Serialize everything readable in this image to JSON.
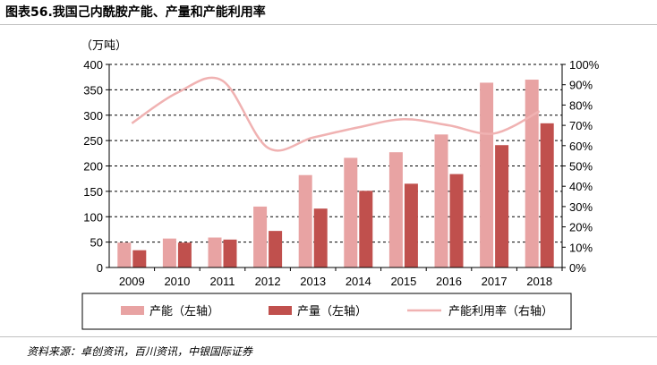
{
  "header": {
    "title": "图表56.我国己内酰胺产能、产量和产能利用率",
    "unit": "（万吨）"
  },
  "footer": {
    "source": "资料来源：卓创资讯，百川资讯，中银国际证券"
  },
  "colors": {
    "capacity": "#e8a3a3",
    "output": "#c0504d",
    "utilization": "#f0b2b2"
  },
  "chart_data": {
    "type": "bar",
    "categories": [
      "2009",
      "2010",
      "2011",
      "2012",
      "2013",
      "2014",
      "2015",
      "2016",
      "2017",
      "2018"
    ],
    "series": [
      {
        "name": "产能（左轴）",
        "axis": "left",
        "kind": "bar",
        "values": [
          49,
          57,
          59,
          120,
          182,
          216,
          227,
          262,
          364,
          370
        ]
      },
      {
        "name": "产量（左轴）",
        "axis": "left",
        "kind": "bar",
        "values": [
          34,
          49,
          55,
          72,
          116,
          151,
          165,
          184,
          241,
          284
        ]
      },
      {
        "name": "产能利用率（右轴）",
        "axis": "right",
        "kind": "line",
        "values": [
          71,
          86,
          92,
          59,
          64,
          69,
          73,
          70,
          66,
          77
        ]
      }
    ],
    "left_axis": {
      "ylim": [
        0,
        400
      ],
      "ticks": [
        "0",
        "50",
        "100",
        "150",
        "200",
        "250",
        "300",
        "350",
        "400"
      ]
    },
    "right_axis": {
      "ylim": [
        0,
        100
      ],
      "ticks": [
        "0%",
        "10%",
        "20%",
        "30%",
        "40%",
        "50%",
        "60%",
        "70%",
        "80%",
        "90%",
        "100%"
      ]
    },
    "grid": true,
    "legend": [
      "产能（左轴）",
      "产量（左轴）",
      "产能利用率（右轴）"
    ],
    "legend_position": "bottom"
  }
}
